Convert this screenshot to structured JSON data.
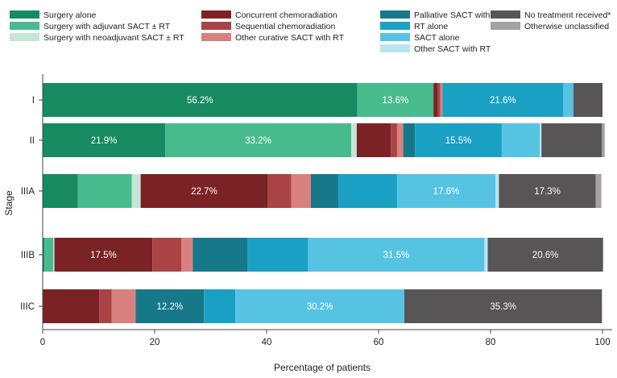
{
  "chart_data": {
    "type": "bar",
    "orientation": "horizontal",
    "stacked": true,
    "title": "",
    "xlabel": "Percentage of patients",
    "ylabel": "Stage",
    "xlim": [
      0,
      100
    ],
    "xticks": [
      0,
      20,
      40,
      60,
      80,
      100
    ],
    "legend_position": "top",
    "categories": [
      "I",
      "II",
      "IIIA",
      "IIIB",
      "IIIC"
    ],
    "series": [
      {
        "name": "Surgery alone",
        "color": "#178a62",
        "values": [
          56.2,
          21.9,
          6.3,
          0.3,
          0
        ]
      },
      {
        "name": "Surgery with adjuvant SACT ± RT",
        "color": "#48bb8e",
        "values": [
          13.6,
          33.2,
          9.6,
          1.6,
          0
        ]
      },
      {
        "name": "Surgery with neoadjuvant SACT ± RT",
        "color": "#c6e6d4",
        "values": [
          0,
          1.0,
          1.6,
          0.2,
          0
        ]
      },
      {
        "name": "Concurrent chemoradiation",
        "color": "#7b2324",
        "values": [
          0.8,
          6.1,
          22.7,
          17.5,
          10.1
        ]
      },
      {
        "name": "Sequential chemoradiation",
        "color": "#aa4346",
        "values": [
          0.4,
          1.1,
          4.2,
          5.2,
          2.2
        ]
      },
      {
        "name": "Other curative SACT with RT",
        "color": "#d9817f",
        "values": [
          0.4,
          1.1,
          3.5,
          2.0,
          4.3
        ]
      },
      {
        "name": "Palliative SACT with RT",
        "color": "#17788a",
        "values": [
          0,
          2.1,
          4.9,
          9.8,
          12.2
        ]
      },
      {
        "name": "RT alone",
        "color": "#1aa0c3",
        "values": [
          21.6,
          15.5,
          10.5,
          10.8,
          5.6
        ]
      },
      {
        "name": "SACT alone",
        "color": "#57c3e3",
        "values": [
          1.8,
          6.8,
          17.6,
          31.5,
          30.2
        ]
      },
      {
        "name": "Other SACT with RT",
        "color": "#b8e4f2",
        "values": [
          0,
          0.3,
          0.6,
          0.6,
          0
        ]
      },
      {
        "name": "No treatment received*",
        "color": "#575555",
        "values": [
          5.2,
          10.8,
          17.3,
          20.6,
          35.3
        ]
      },
      {
        "name": "Otherwise unclassified",
        "color": "#a3a1a1",
        "values": [
          0,
          0.5,
          1.0,
          0,
          0
        ]
      }
    ],
    "data_labels": [
      {
        "category": "I",
        "series": "Surgery alone",
        "text": "56.2%"
      },
      {
        "category": "I",
        "series": "Surgery with adjuvant SACT ± RT",
        "text": "13.6%"
      },
      {
        "category": "I",
        "series": "RT alone",
        "text": "21.6%"
      },
      {
        "category": "II",
        "series": "Surgery alone",
        "text": "21.9%"
      },
      {
        "category": "II",
        "series": "Surgery with adjuvant SACT ± RT",
        "text": "33.2%"
      },
      {
        "category": "II",
        "series": "RT alone",
        "text": "15.5%"
      },
      {
        "category": "IIIA",
        "series": "Concurrent chemoradiation",
        "text": "22.7%"
      },
      {
        "category": "IIIA",
        "series": "SACT alone",
        "text": "17.6%"
      },
      {
        "category": "IIIA",
        "series": "No treatment received*",
        "text": "17.3%"
      },
      {
        "category": "IIIB",
        "series": "Concurrent chemoradiation",
        "text": "17.5%"
      },
      {
        "category": "IIIB",
        "series": "SACT alone",
        "text": "31.5%"
      },
      {
        "category": "IIIB",
        "series": "No treatment received*",
        "text": "20.6%"
      },
      {
        "category": "IIIC",
        "series": "Palliative SACT with RT",
        "text": "12.2%"
      },
      {
        "category": "IIIC",
        "series": "SACT alone",
        "text": "30.2%"
      },
      {
        "category": "IIIC",
        "series": "No treatment received*",
        "text": "35.3%"
      }
    ]
  }
}
